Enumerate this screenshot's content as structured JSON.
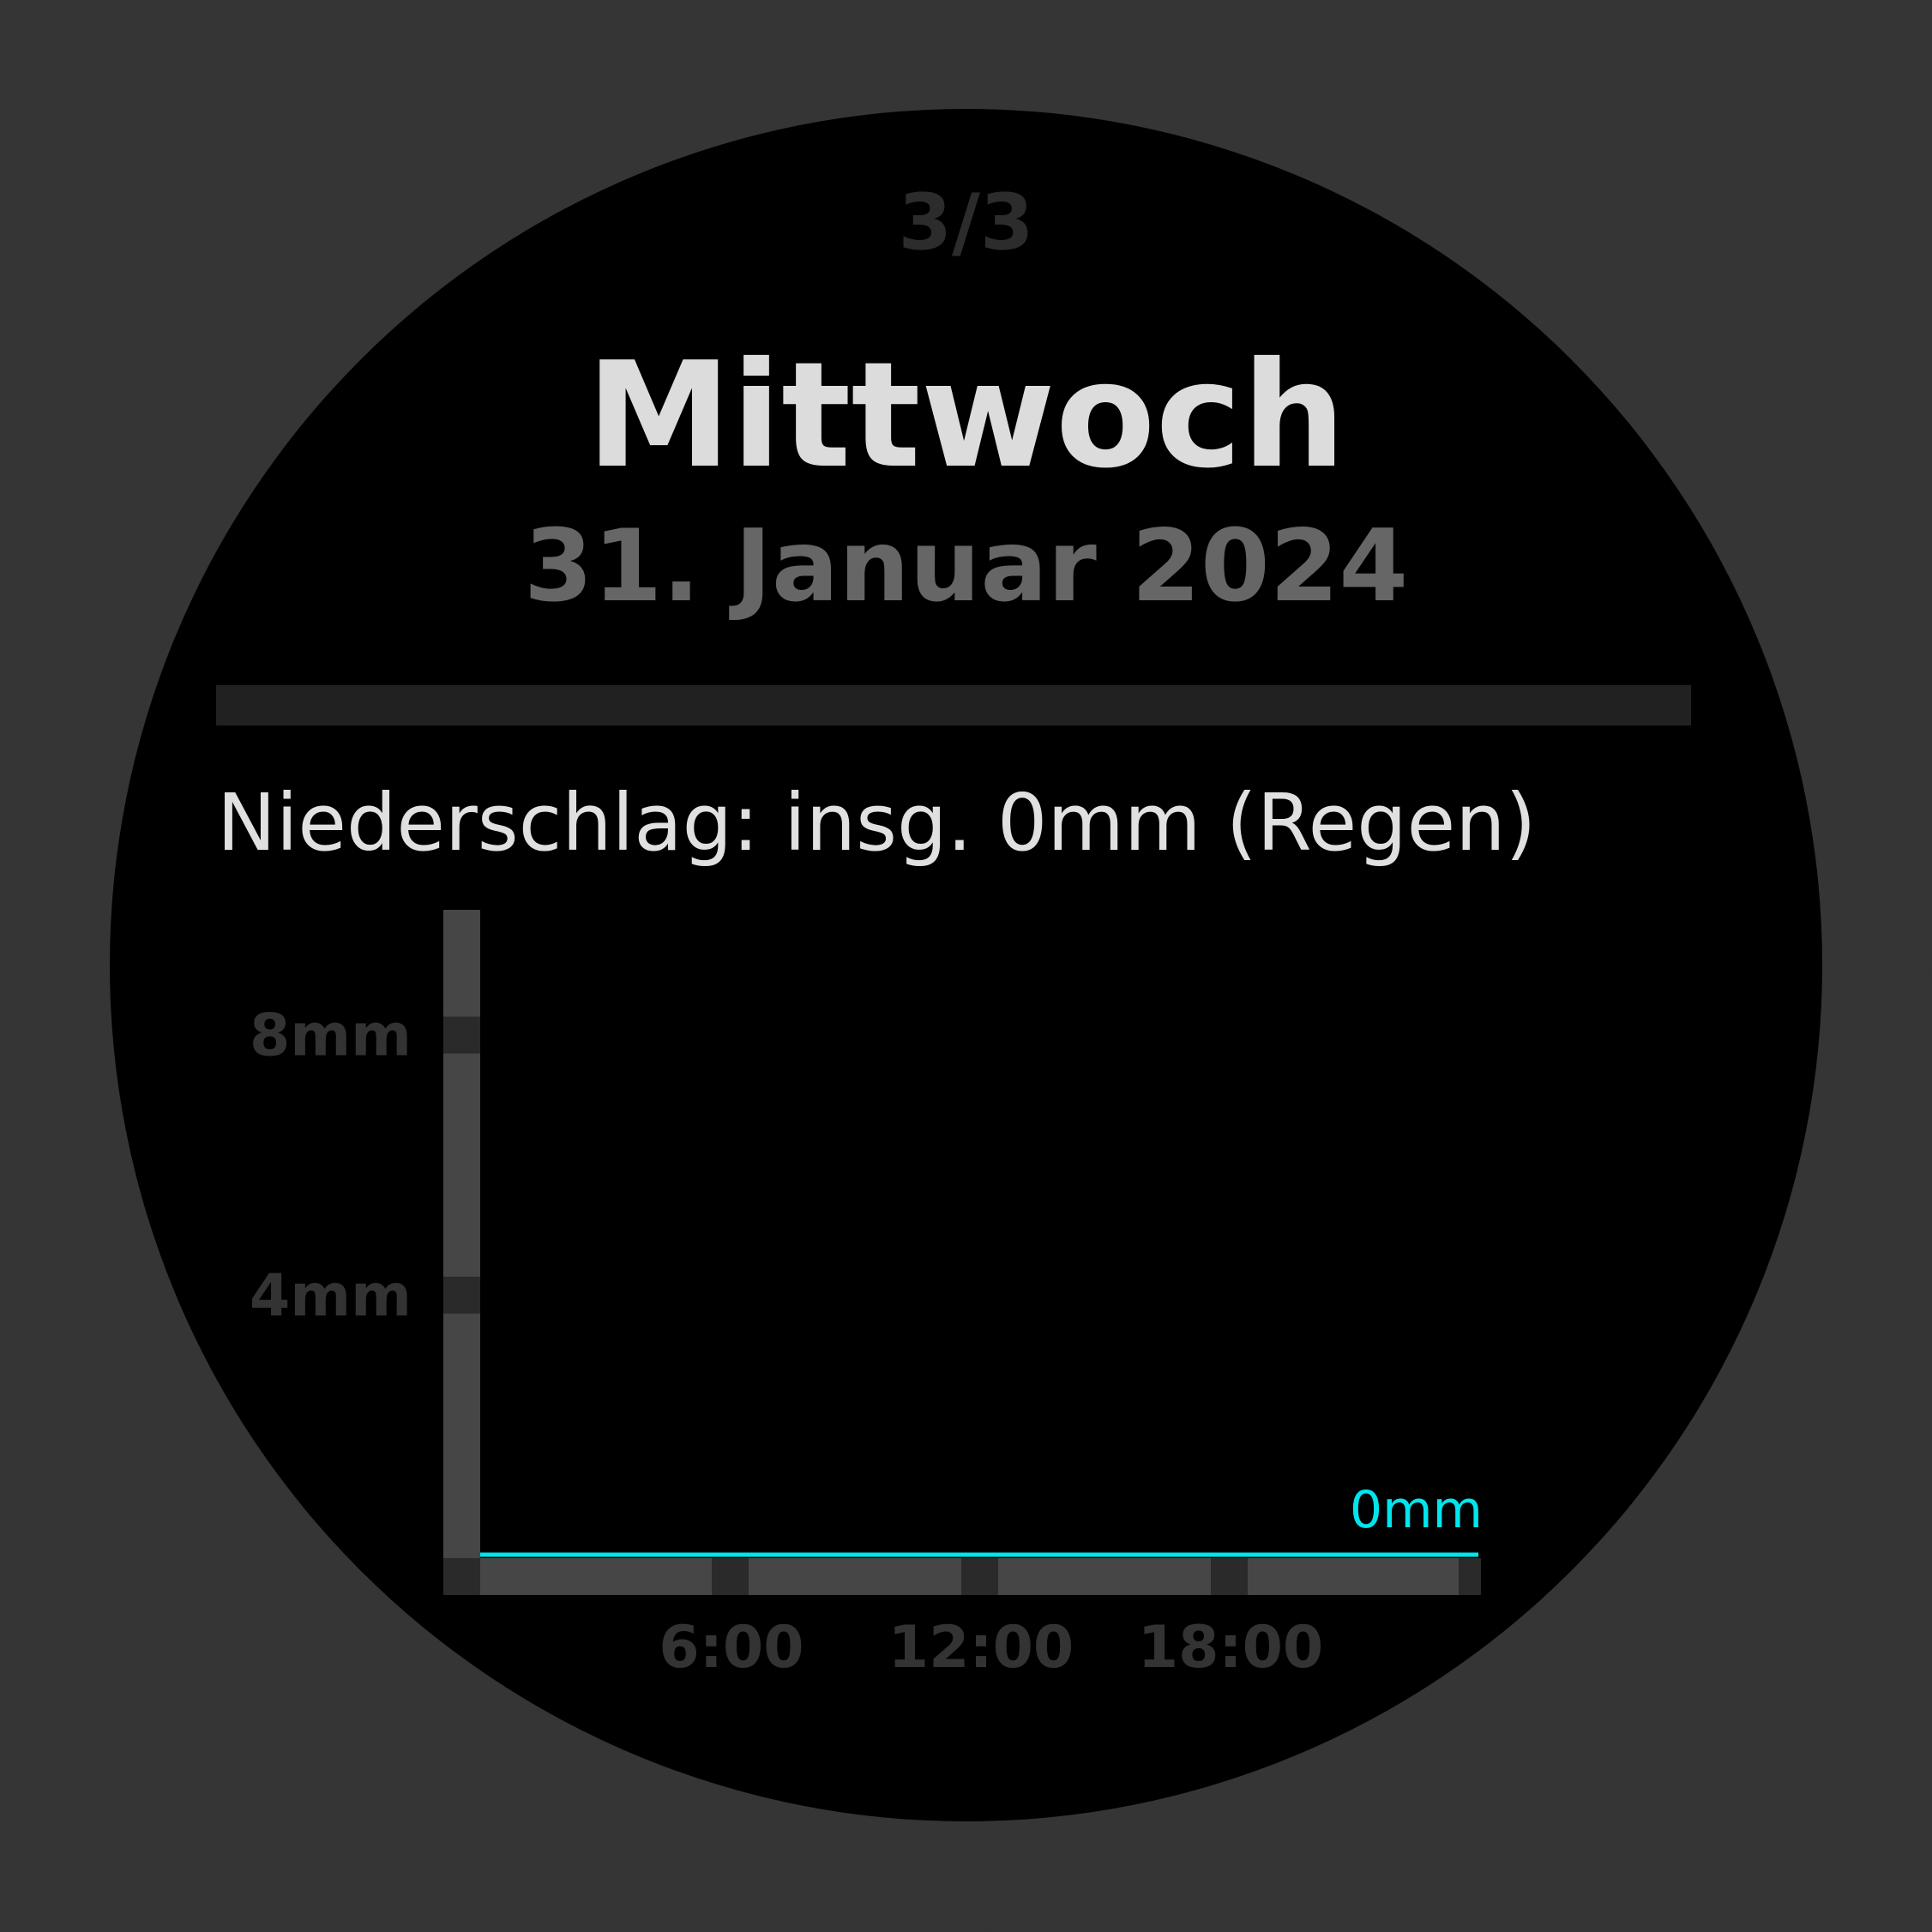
{
  "page_indicator": "3/3",
  "header": {
    "weekday": "Mittwoch",
    "date": "31. Januar 2024"
  },
  "precipitation": {
    "summary": "Niederschlag: insg. 0mm (Regen)"
  },
  "colors": {
    "bezel": "#353535",
    "background": "#000000",
    "axis": "#464646",
    "tick_mark": "#2a2a2a",
    "series_line": "#00e5ee"
  },
  "chart_data": {
    "type": "line",
    "title": "",
    "xlabel": "",
    "ylabel": "",
    "x": [
      "0:00",
      "6:00",
      "12:00",
      "18:00",
      "24:00"
    ],
    "x_tick_labels": [
      "6:00",
      "12:00",
      "18:00"
    ],
    "x_tick_values": [
      6,
      12,
      18
    ],
    "xlim": [
      0,
      24
    ],
    "ylim": [
      0,
      10
    ],
    "y_tick_labels": [
      "4mm",
      "8mm"
    ],
    "y_tick_values": [
      4,
      8
    ],
    "series": [
      {
        "values": [
          0,
          0,
          0,
          0,
          0
        ],
        "end_label": "0mm",
        "color": "#00e5ee"
      }
    ],
    "grid": false,
    "legend": "none"
  }
}
